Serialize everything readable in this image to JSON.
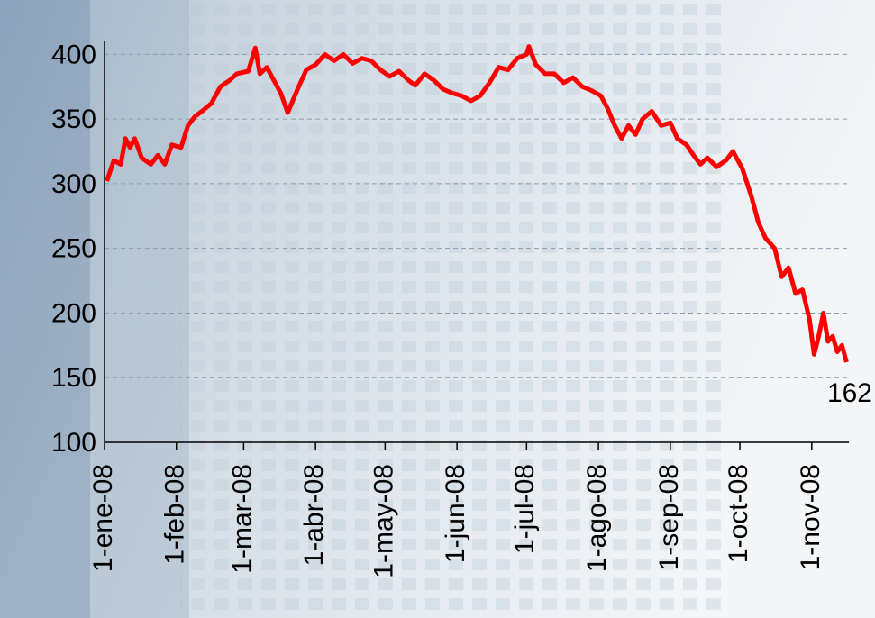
{
  "chart_data": {
    "type": "line",
    "color": "#ff0000",
    "grid": true,
    "x": [
      "2008-01-02",
      "2008-01-05",
      "2008-01-08",
      "2008-01-10",
      "2008-01-12",
      "2008-01-14",
      "2008-01-17",
      "2008-01-21",
      "2008-01-24",
      "2008-01-27",
      "2008-01-30",
      "2008-02-03",
      "2008-02-06",
      "2008-02-09",
      "2008-02-12",
      "2008-02-16",
      "2008-02-20",
      "2008-02-24",
      "2008-02-27",
      "2008-03-03",
      "2008-03-06",
      "2008-03-08",
      "2008-03-11",
      "2008-03-14",
      "2008-03-17",
      "2008-03-20",
      "2008-03-24",
      "2008-03-28",
      "2008-04-01",
      "2008-04-05",
      "2008-04-09",
      "2008-04-13",
      "2008-04-17",
      "2008-04-21",
      "2008-04-25",
      "2008-04-29",
      "2008-05-03",
      "2008-05-07",
      "2008-05-11",
      "2008-05-14",
      "2008-05-18",
      "2008-05-22",
      "2008-05-26",
      "2008-05-30",
      "2008-06-03",
      "2008-06-07",
      "2008-06-11",
      "2008-06-15",
      "2008-06-19",
      "2008-06-23",
      "2008-06-27",
      "2008-07-01",
      "2008-07-02",
      "2008-07-05",
      "2008-07-09",
      "2008-07-13",
      "2008-07-17",
      "2008-07-21",
      "2008-07-25",
      "2008-07-29",
      "2008-08-02",
      "2008-08-05",
      "2008-08-08",
      "2008-08-11",
      "2008-08-14",
      "2008-08-17",
      "2008-08-20",
      "2008-08-24",
      "2008-08-28",
      "2008-09-01",
      "2008-09-04",
      "2008-09-08",
      "2008-09-11",
      "2008-09-14",
      "2008-09-17",
      "2008-09-21",
      "2008-09-25",
      "2008-09-28",
      "2008-10-02",
      "2008-10-06",
      "2008-10-09",
      "2008-10-12",
      "2008-10-15",
      "2008-10-16",
      "2008-10-19",
      "2008-10-22",
      "2008-10-25",
      "2008-10-28",
      "2008-10-31",
      "2008-11-02",
      "2008-11-04",
      "2008-11-06",
      "2008-11-08",
      "2008-11-10",
      "2008-11-12",
      "2008-11-14",
      "2008-11-16"
    ],
    "values": [
      302,
      318,
      315,
      335,
      328,
      335,
      320,
      315,
      322,
      315,
      330,
      328,
      345,
      352,
      356,
      362,
      375,
      380,
      385,
      387,
      405,
      385,
      390,
      380,
      370,
      355,
      372,
      388,
      392,
      400,
      395,
      400,
      393,
      397,
      395,
      388,
      383,
      387,
      380,
      376,
      385,
      380,
      373,
      370,
      368,
      364,
      368,
      378,
      390,
      388,
      397,
      400,
      406,
      392,
      385,
      385,
      378,
      382,
      375,
      372,
      368,
      358,
      345,
      335,
      345,
      338,
      350,
      356,
      345,
      347,
      335,
      330,
      322,
      315,
      320,
      313,
      318,
      325,
      312,
      290,
      270,
      258,
      252,
      250,
      228,
      235,
      215,
      218,
      195,
      168,
      182,
      200,
      178,
      182,
      170,
      175,
      162
    ],
    "xlim": [
      "2008-01-01",
      "2008-11-17"
    ],
    "xticks": [
      {
        "value": "2008-01-01",
        "label": "1-ene-08"
      },
      {
        "value": "2008-02-01",
        "label": "1-feb-08"
      },
      {
        "value": "2008-03-01",
        "label": "1-mar-08"
      },
      {
        "value": "2008-04-01",
        "label": "1-abr-08"
      },
      {
        "value": "2008-05-01",
        "label": "1-may-08"
      },
      {
        "value": "2008-06-01",
        "label": "1-jun-08"
      },
      {
        "value": "2008-07-01",
        "label": "1-jul-08"
      },
      {
        "value": "2008-08-01",
        "label": "1-ago-08"
      },
      {
        "value": "2008-09-01",
        "label": "1-sep-08"
      },
      {
        "value": "2008-10-01",
        "label": "1-oct-08"
      },
      {
        "value": "2008-11-01",
        "label": "1-nov-08"
      }
    ],
    "ylim": [
      100,
      410
    ],
    "yticks": [
      100,
      150,
      200,
      250,
      300,
      350,
      400
    ]
  }
}
